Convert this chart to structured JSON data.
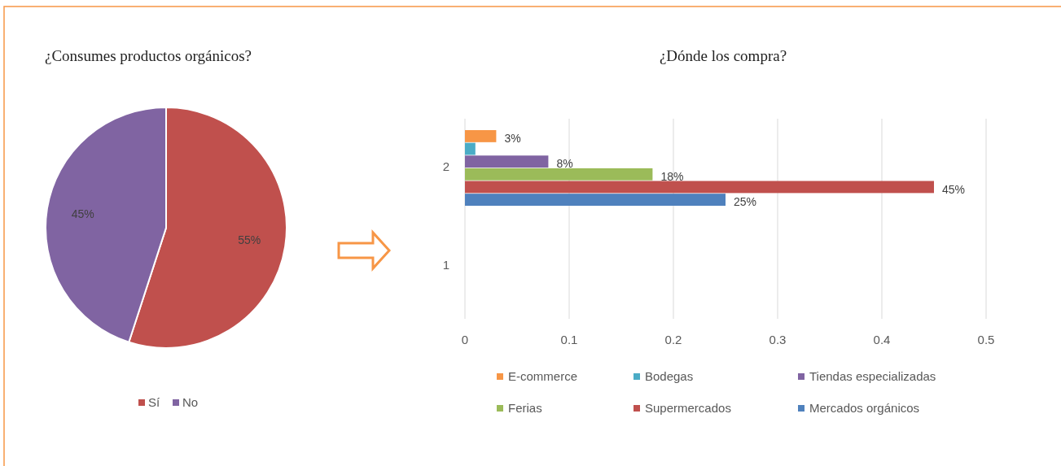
{
  "chart_data": [
    {
      "type": "pie",
      "title": "¿Consumes productos orgánicos?",
      "categories": [
        "Sí",
        "No"
      ],
      "values": [
        55,
        45
      ],
      "colors": [
        "#c0504d",
        "#8064a2"
      ],
      "value_labels": [
        "55%",
        "45%"
      ],
      "legend": "bottom"
    },
    {
      "type": "bar",
      "title": "¿Dónde los compra?",
      "orientation": "horizontal",
      "categories": [
        "2",
        "1"
      ],
      "series": [
        {
          "name": "E-commerce",
          "color": "#f79646",
          "values": [
            0.03,
            null
          ],
          "value_labels": [
            "3%",
            null
          ]
        },
        {
          "name": "Bodegas",
          "color": "#4bacc6",
          "values": [
            0.01,
            null
          ],
          "value_labels": [
            null,
            null
          ]
        },
        {
          "name": "Tiendas especializadas",
          "color": "#8064a2",
          "values": [
            0.08,
            null
          ],
          "value_labels": [
            "8%",
            null
          ]
        },
        {
          "name": "Ferias",
          "color": "#9bbb59",
          "values": [
            0.18,
            null
          ],
          "value_labels": [
            "18%",
            null
          ]
        },
        {
          "name": "Supermercados",
          "color": "#c0504d",
          "values": [
            0.45,
            null
          ],
          "value_labels": [
            "45%",
            null
          ]
        },
        {
          "name": "Mercados orgánicos",
          "color": "#4f81bd",
          "values": [
            0.25,
            null
          ],
          "value_labels": [
            "25%",
            null
          ]
        }
      ],
      "xlim": [
        0,
        0.5
      ],
      "xticks": [
        0,
        0.1,
        0.2,
        0.3,
        0.4,
        0.5
      ],
      "grid": "x",
      "legend": "bottom"
    }
  ]
}
